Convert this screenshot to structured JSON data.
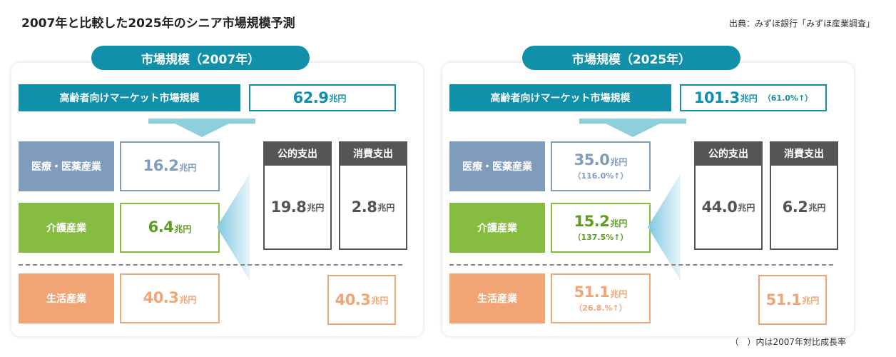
{
  "title": "2007年と比較した2025年のシニア市場規模予測",
  "source": "出典：みずほ銀行「みずほ産業調査」",
  "note": "（　）内は2007年対比成長率",
  "colors": {
    "teal": "#1190aa",
    "blue": "#7f9cba",
    "green": "#86bd40",
    "orange": "#f1a575",
    "gray": "#555555"
  },
  "panels": [
    {
      "heading": "市場規模（2007年）",
      "total_label": "高齢者向けマーケット市場規模",
      "total": {
        "value": "62.9",
        "unit": "兆円",
        "growth": ""
      },
      "medical": {
        "label": "医療・医薬産業",
        "value": "16.2",
        "unit": "兆円",
        "growth": ""
      },
      "care": {
        "label": "介護産業",
        "value": "6.4",
        "unit": "兆円",
        "growth": ""
      },
      "public": {
        "label": "公的支出",
        "value": "19.8",
        "unit": "兆円"
      },
      "consumer": {
        "label": "消費支出",
        "value": "2.8",
        "unit": "兆円"
      },
      "life": {
        "label": "生活産業",
        "value": "40.3",
        "unit": "兆円",
        "growth": ""
      },
      "life_consumer": {
        "value": "40.3",
        "unit": "兆円"
      }
    },
    {
      "heading": "市場規模（2025年）",
      "total_label": "高齢者向けマーケット市場規模",
      "total": {
        "value": "101.3",
        "unit": "兆円",
        "growth": "（61.0%↑）"
      },
      "medical": {
        "label": "医療・医薬産業",
        "value": "35.0",
        "unit": "兆円",
        "growth": "（116.0%↑）"
      },
      "care": {
        "label": "介護産業",
        "value": "15.2",
        "unit": "兆円",
        "growth": "（137.5%↑）"
      },
      "public": {
        "label": "公的支出",
        "value": "44.0",
        "unit": "兆円"
      },
      "consumer": {
        "label": "消費支出",
        "value": "6.2",
        "unit": "兆円"
      },
      "life": {
        "label": "生活産業",
        "value": "51.1",
        "unit": "兆円",
        "growth": "（26.8.%↑）"
      },
      "life_consumer": {
        "value": "51.1",
        "unit": "兆円"
      }
    }
  ]
}
